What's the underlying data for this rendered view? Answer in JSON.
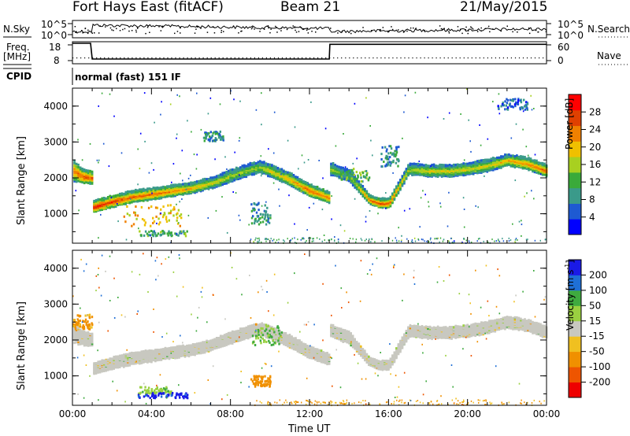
{
  "header": {
    "station": "Fort Hays East (fitACF)",
    "beam": "Beam 21",
    "date": "21/May/2015"
  },
  "panels_top": {
    "nsky_label": "N.Sky",
    "nsky_ticks": [
      "10^5",
      "10^0"
    ],
    "nsearch_label": "N.Search",
    "nsearch_ticks": [
      "10^5",
      "10^0"
    ],
    "freq_label_line1": "Freq.",
    "freq_label_line2": "[MHz]",
    "freq_ticks": [
      "18",
      "8"
    ],
    "nave_label": "Nave",
    "nave_ticks": [
      "60",
      "0"
    ],
    "cpid_label": "CPID",
    "cpid_text": "normal (fast) 151 IF"
  },
  "colors": {
    "power_scale": [
      "#0000ff",
      "#1e5ad2",
      "#3a9a8a",
      "#3aaa3a",
      "#a8d020",
      "#f0c000",
      "#f08000",
      "#e04000",
      "#ff0000"
    ],
    "velocity_scale": [
      "#1a1ae6",
      "#1f6fd6",
      "#3faa3f",
      "#9ad040",
      "#c8c8c0",
      "#f0c020",
      "#f09000",
      "#ee5500",
      "#ee0000"
    ],
    "ground_scatter": "#c8c8c0"
  },
  "chart_data": [
    {
      "type": "line",
      "name": "N.Sky / N.Search",
      "x": [
        "00:00",
        "01:00",
        "04:00",
        "08:00",
        "12:00",
        "13:00",
        "16:00",
        "20:00",
        "24:00"
      ],
      "series": [
        {
          "name": "N.Sky",
          "values": [
            0,
            10000,
            20000,
            15000,
            8000,
            1500,
            3000,
            6000,
            12000
          ]
        },
        {
          "name": "N.Search",
          "values": [
            0,
            1,
            1,
            1,
            1,
            1,
            1,
            1,
            1
          ]
        }
      ],
      "yscale": "log",
      "ylim": [
        1,
        100000
      ]
    },
    {
      "type": "line",
      "name": "Freq / Nave",
      "x": [
        "00:00",
        "00:55",
        "01:00",
        "13:00",
        "13:02",
        "24:00"
      ],
      "series": [
        {
          "name": "Freq. [MHz]",
          "values": [
            18,
            18,
            10.3,
            10.3,
            17.5,
            17.5
          ]
        },
        {
          "name": "Nave",
          "values": [
            5,
            5,
            5,
            5,
            5,
            5
          ]
        }
      ],
      "ylim": [
        8,
        18
      ]
    },
    {
      "type": "heatmap",
      "name": "Power",
      "title": "Power [dB]",
      "xlabel": "Time UT",
      "ylabel": "Slant Range [km]",
      "xticks": [
        "00:00",
        "04:00",
        "08:00",
        "12:00",
        "16:00",
        "20:00",
        "00:00"
      ],
      "yticks": [
        "1000",
        "2000",
        "3000",
        "4000"
      ],
      "xlim_hours": [
        0,
        24
      ],
      "ylim_km": [
        180,
        4500
      ],
      "colorbar_ticks": [
        "28",
        "24",
        "20",
        "16",
        "12",
        "8",
        "4"
      ],
      "colorbar_range": [
        0,
        30
      ],
      "main_band": {
        "time_h": [
          0,
          0.5,
          1.0,
          1.05,
          2,
          3,
          4,
          5,
          6,
          7,
          8,
          9,
          9.5,
          10,
          11,
          12,
          13,
          13.05,
          14,
          15,
          15.5,
          16,
          17,
          18,
          19,
          20,
          21,
          22,
          23,
          24
        ],
        "range_km": [
          2200,
          2050,
          2000,
          1200,
          1350,
          1480,
          1560,
          1640,
          1720,
          1860,
          2060,
          2250,
          2300,
          2200,
          1950,
          1650,
          1450,
          2250,
          2050,
          1400,
          1300,
          1300,
          2250,
          2200,
          2200,
          2250,
          2350,
          2500,
          2400,
          2200
        ],
        "width_km": [
          550,
          350,
          300,
          300,
          300,
          300,
          300,
          280,
          280,
          280,
          300,
          300,
          300,
          320,
          320,
          300,
          280,
          320,
          300,
          220,
          220,
          250,
          300,
          300,
          300,
          300,
          300,
          300,
          300,
          300
        ],
        "power_db": [
          20,
          24,
          22,
          26,
          24,
          22,
          22,
          20,
          18,
          16,
          14,
          14,
          14,
          16,
          18,
          22,
          20,
          14,
          10,
          22,
          24,
          22,
          14,
          16,
          16,
          16,
          16,
          18,
          20,
          22
        ]
      },
      "patches": [
        {
          "t0": 2.5,
          "t1": 5.5,
          "r0": 650,
          "r1": 1250,
          "power_db": 18
        },
        {
          "t0": 3.3,
          "t1": 5.8,
          "r0": 380,
          "r1": 520,
          "power_db": 10
        },
        {
          "t0": 6.6,
          "t1": 7.6,
          "r0": 3000,
          "r1": 3300,
          "power_db": 8
        },
        {
          "t0": 9.0,
          "t1": 10.0,
          "r0": 700,
          "r1": 1300,
          "power_db": 8
        },
        {
          "t0": 13.5,
          "t1": 15.0,
          "r0": 1900,
          "r1": 2250,
          "power_db": 12
        },
        {
          "t0": 15.6,
          "t1": 16.5,
          "r0": 2300,
          "r1": 2900,
          "power_db": 8
        },
        {
          "t0": 21.5,
          "t1": 23.0,
          "r0": 3900,
          "r1": 4200,
          "power_db": 6
        }
      ]
    },
    {
      "type": "heatmap",
      "name": "Velocity",
      "title": "Velocity [m s^-1]",
      "xlabel": "Time UT",
      "ylabel": "Slant Range [km]",
      "xticks": [
        "00:00",
        "04:00",
        "08:00",
        "12:00",
        "16:00",
        "20:00",
        "00:00"
      ],
      "yticks": [
        "1000",
        "2000",
        "3000",
        "4000"
      ],
      "xlim_hours": [
        0,
        24
      ],
      "ylim_km": [
        180,
        4500
      ],
      "colorbar_ticks": [
        "200",
        "100",
        "50",
        "15",
        "-15",
        "-50",
        "-100",
        "-200"
      ],
      "dominant_velocity": 0,
      "patches": [
        {
          "t0": 3.3,
          "t1": 5.0,
          "r0": 500,
          "r1": 700,
          "velocity": 40
        },
        {
          "t0": 3.3,
          "t1": 5.8,
          "r0": 380,
          "r1": 520,
          "velocity": 210
        },
        {
          "t0": 9.0,
          "t1": 10.5,
          "r0": 1800,
          "r1": 2400,
          "velocity": 50
        },
        {
          "t0": 0.0,
          "t1": 1.0,
          "r0": 2300,
          "r1": 2700,
          "velocity": -60
        },
        {
          "t0": 9.0,
          "t1": 10.0,
          "r0": 700,
          "r1": 1000,
          "velocity": -80
        }
      ]
    }
  ],
  "power_colorbar_label": "Power [dB]",
  "velocity_colorbar_label": "Velocity [m s",
  "velocity_colorbar_exp": "-1",
  "velocity_colorbar_end": "]",
  "xaxis_label": "Time UT",
  "yaxis_label": "Slant Range [km]"
}
